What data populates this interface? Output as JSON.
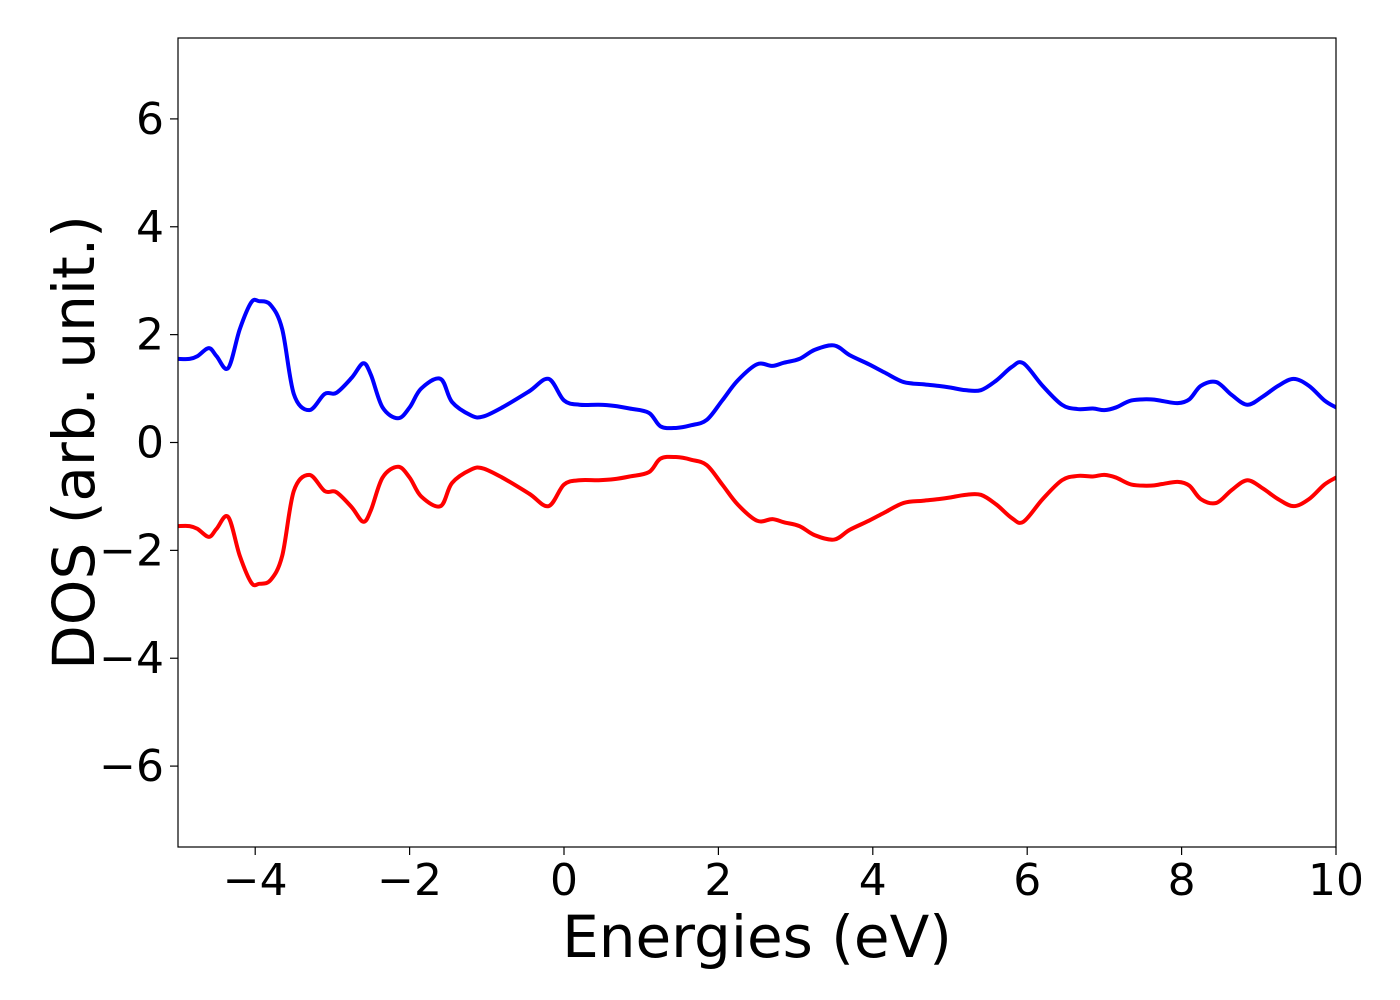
{
  "chart_data": {
    "type": "line",
    "title": "",
    "xlabel": "Energies (eV)",
    "ylabel": "DOS (arb. unit.)",
    "xlim": [
      -5,
      10
    ],
    "ylim": [
      -7.5,
      7.5
    ],
    "xticks": [
      {
        "value": -4,
        "label": "−4"
      },
      {
        "value": -2,
        "label": "−2"
      },
      {
        "value": 0,
        "label": "0"
      },
      {
        "value": 2,
        "label": "2"
      },
      {
        "value": 4,
        "label": "4"
      },
      {
        "value": 6,
        "label": "6"
      },
      {
        "value": 8,
        "label": "8"
      },
      {
        "value": 10,
        "label": "10"
      }
    ],
    "yticks": [
      {
        "value": 6,
        "label": "6"
      },
      {
        "value": 4,
        "label": "4"
      },
      {
        "value": 2,
        "label": "2"
      },
      {
        "value": 0,
        "label": "0"
      },
      {
        "value": -2,
        "label": "−2"
      },
      {
        "value": -4,
        "label": "−4"
      },
      {
        "value": -6,
        "label": "−6"
      }
    ],
    "grid": false,
    "legend": "none",
    "x": [
      -5.0,
      -4.85,
      -4.75,
      -4.6,
      -4.5,
      -4.35,
      -4.2,
      -4.05,
      -3.95,
      -3.8,
      -3.65,
      -3.5,
      -3.3,
      -3.1,
      -2.95,
      -2.75,
      -2.6,
      -2.5,
      -2.35,
      -2.15,
      -2.0,
      -1.85,
      -1.6,
      -1.45,
      -1.2,
      -1.05,
      -0.8,
      -0.45,
      -0.2,
      0.0,
      0.2,
      0.45,
      0.65,
      0.85,
      1.1,
      1.25,
      1.45,
      1.65,
      1.85,
      2.05,
      2.25,
      2.5,
      2.7,
      2.85,
      3.05,
      3.25,
      3.5,
      3.7,
      3.95,
      4.15,
      4.4,
      4.65,
      4.85,
      5.0,
      5.2,
      5.4,
      5.6,
      5.8,
      5.95,
      6.2,
      6.45,
      6.65,
      6.85,
      7.0,
      7.15,
      7.35,
      7.6,
      7.75,
      7.95,
      8.1,
      8.25,
      8.45,
      8.65,
      8.85,
      9.05,
      9.25,
      9.45,
      9.65,
      9.85,
      10.0
    ],
    "series": [
      {
        "color": "#0000ff",
        "values": [
          1.55,
          1.55,
          1.6,
          1.75,
          1.6,
          1.38,
          2.1,
          2.6,
          2.62,
          2.55,
          2.1,
          0.9,
          0.6,
          0.9,
          0.92,
          1.2,
          1.47,
          1.25,
          0.65,
          0.45,
          0.65,
          1.0,
          1.18,
          0.75,
          0.5,
          0.48,
          0.65,
          0.95,
          1.18,
          0.78,
          0.7,
          0.7,
          0.68,
          0.63,
          0.55,
          0.3,
          0.27,
          0.32,
          0.42,
          0.78,
          1.15,
          1.45,
          1.42,
          1.48,
          1.55,
          1.72,
          1.8,
          1.62,
          1.45,
          1.3,
          1.12,
          1.08,
          1.05,
          1.02,
          0.97,
          0.97,
          1.15,
          1.4,
          1.47,
          1.05,
          0.7,
          0.62,
          0.63,
          0.6,
          0.65,
          0.78,
          0.8,
          0.77,
          0.73,
          0.8,
          1.05,
          1.12,
          0.88,
          0.7,
          0.85,
          1.05,
          1.18,
          1.05,
          0.78,
          0.65
        ]
      },
      {
        "color": "#ff0000",
        "values": [
          -1.55,
          -1.55,
          -1.6,
          -1.75,
          -1.6,
          -1.38,
          -2.1,
          -2.6,
          -2.62,
          -2.55,
          -2.1,
          -0.9,
          -0.6,
          -0.9,
          -0.92,
          -1.2,
          -1.47,
          -1.25,
          -0.65,
          -0.45,
          -0.65,
          -1.0,
          -1.18,
          -0.75,
          -0.5,
          -0.48,
          -0.65,
          -0.95,
          -1.18,
          -0.78,
          -0.7,
          -0.7,
          -0.68,
          -0.63,
          -0.55,
          -0.3,
          -0.27,
          -0.32,
          -0.42,
          -0.78,
          -1.15,
          -1.45,
          -1.42,
          -1.48,
          -1.55,
          -1.72,
          -1.8,
          -1.62,
          -1.45,
          -1.3,
          -1.12,
          -1.08,
          -1.05,
          -1.02,
          -0.97,
          -0.97,
          -1.15,
          -1.4,
          -1.47,
          -1.05,
          -0.7,
          -0.62,
          -0.63,
          -0.6,
          -0.65,
          -0.78,
          -0.8,
          -0.77,
          -0.73,
          -0.8,
          -1.05,
          -1.12,
          -0.88,
          -0.7,
          -0.85,
          -1.05,
          -1.18,
          -1.05,
          -0.78,
          -0.65
        ]
      }
    ]
  }
}
